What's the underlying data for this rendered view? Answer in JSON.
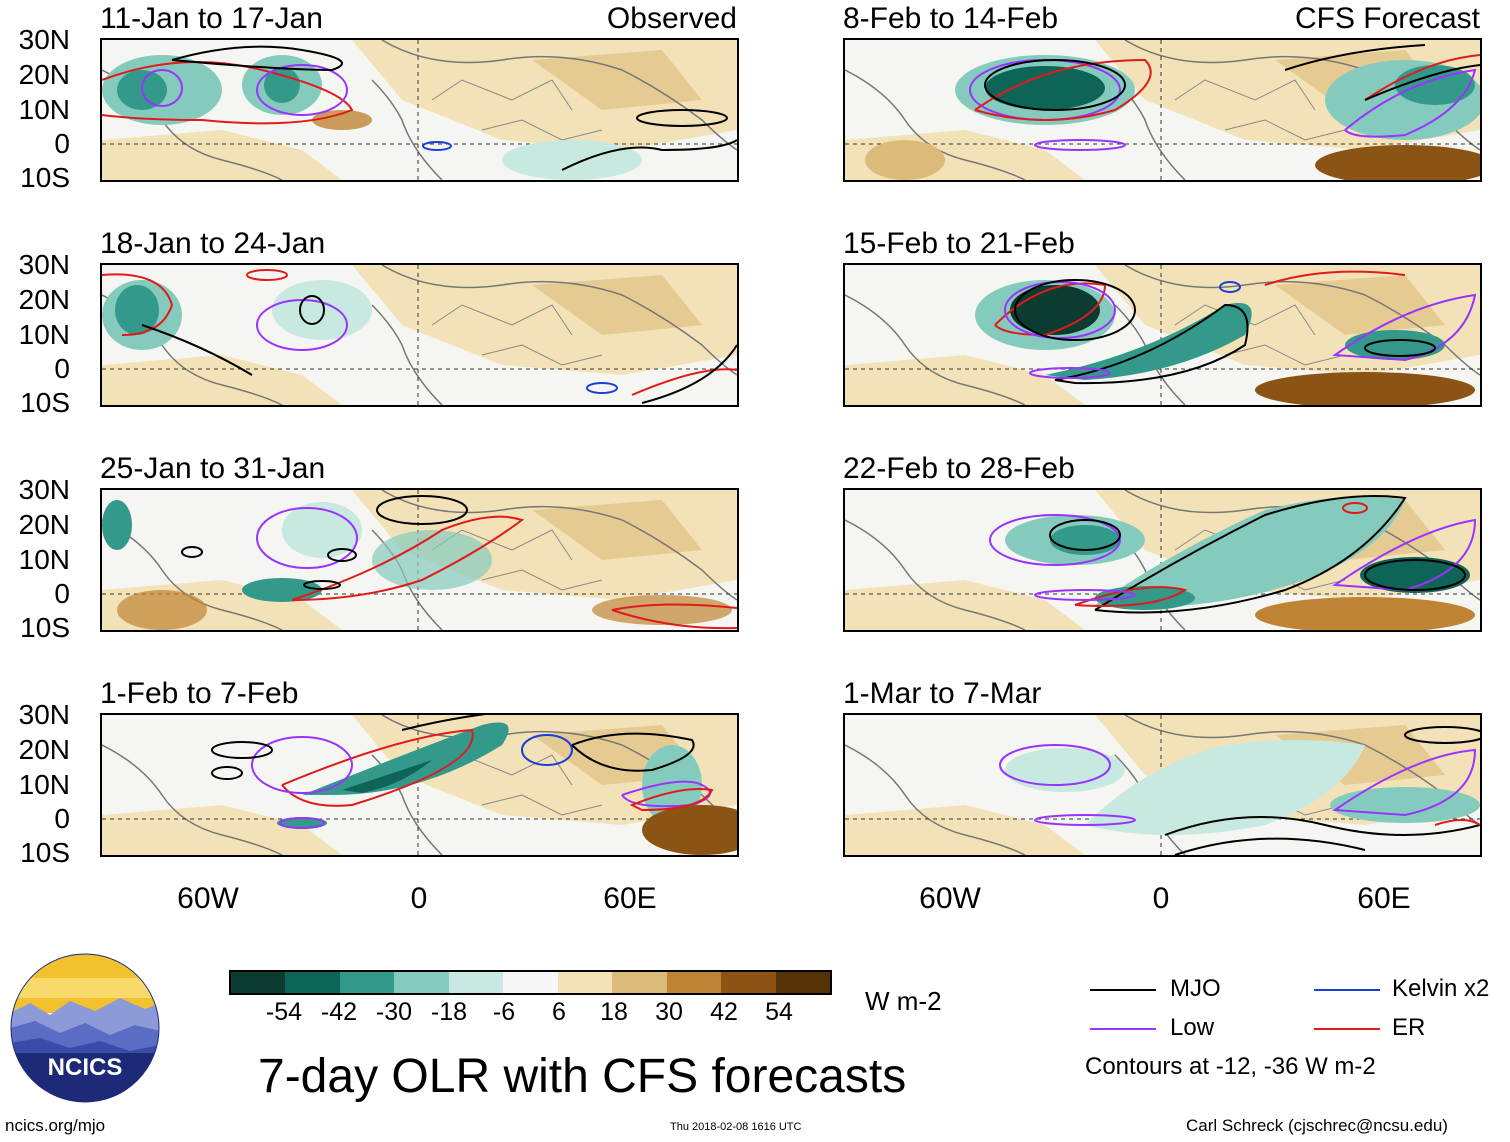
{
  "header": {
    "observed_label": "Observed",
    "forecast_label": "CFS Forecast"
  },
  "panels_left": [
    {
      "title": "11-Jan to 17-Jan"
    },
    {
      "title": "18-Jan to 24-Jan"
    },
    {
      "title": "25-Jan to 31-Jan"
    },
    {
      "title": "1-Feb to 7-Feb"
    }
  ],
  "panels_right": [
    {
      "title": "8-Feb to 14-Feb"
    },
    {
      "title": "15-Feb to 21-Feb"
    },
    {
      "title": "22-Feb to 28-Feb"
    },
    {
      "title": "1-Mar to 7-Mar"
    }
  ],
  "axes": {
    "lat_labels": [
      "30N",
      "20N",
      "10N",
      "0",
      "10S"
    ],
    "lon_labels": [
      "60W",
      "0",
      "60E"
    ]
  },
  "colorbar": {
    "colors": [
      "#0b3b31",
      "#0d6457",
      "#33998a",
      "#85cbbd",
      "#c7e9e1",
      "#f7f7f7",
      "#f3e2b7",
      "#dcbb7a",
      "#bf8433",
      "#8b5314",
      "#563207"
    ],
    "labels": [
      "-54",
      "-42",
      "-30",
      "-18",
      "-6",
      "6",
      "18",
      "30",
      "42",
      "54"
    ],
    "units": "W m-2"
  },
  "legend": {
    "items": [
      {
        "label": "MJO",
        "color": "#000000"
      },
      {
        "label": "Kelvin x2",
        "color": "#1a3fd6"
      },
      {
        "label": "Low",
        "color": "#9933ff"
      },
      {
        "label": "ER",
        "color": "#e01b1b"
      }
    ],
    "note": "Contours at -12, -36 W m-2"
  },
  "footer": {
    "title": "7-day OLR with CFS forecasts",
    "site": "ncics.org/mjo",
    "timestamp": "Thu 2018-02-08 1616 UTC",
    "author": "Carl Schreck (cjschrec@ncsu.edu)",
    "logo_text": "NCICS"
  }
}
